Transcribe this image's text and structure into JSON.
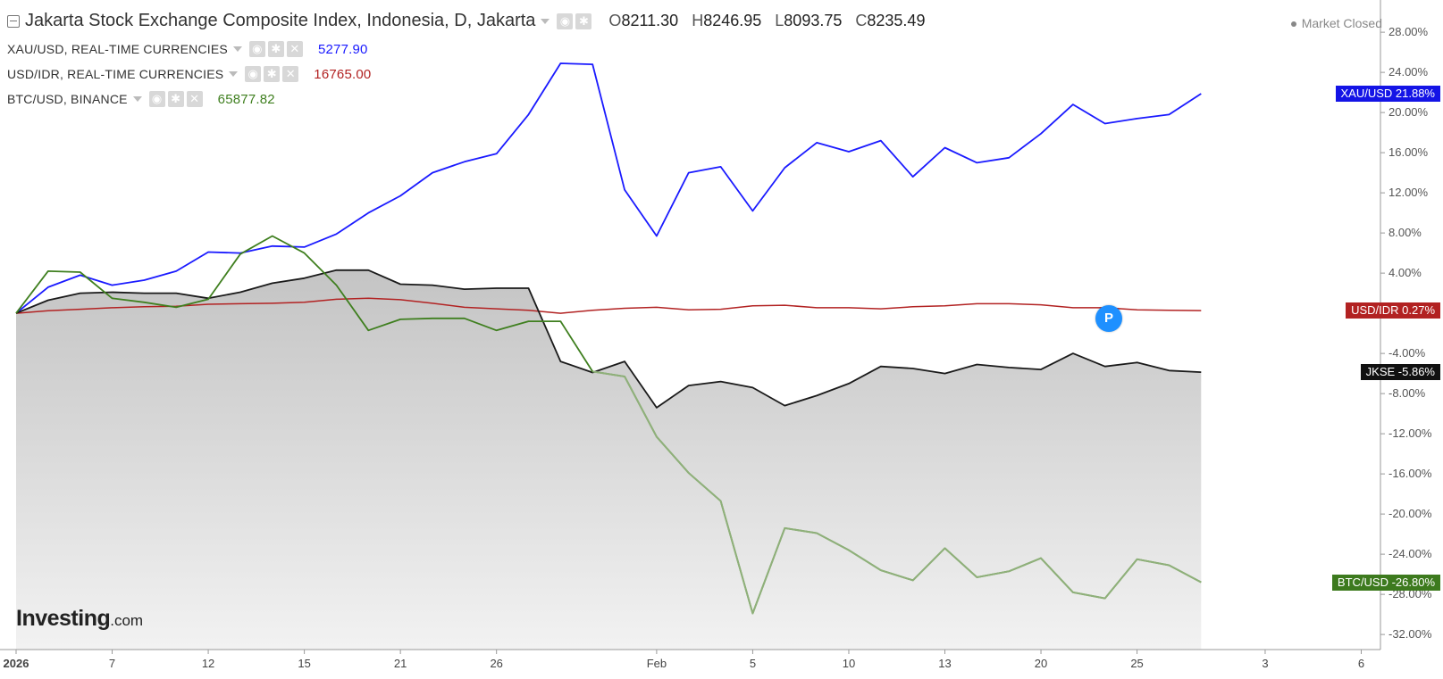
{
  "header": {
    "title": "Jakarta Stock Exchange Composite Index, Indonesia, D, Jakarta",
    "ohlc": [
      {
        "key": "O",
        "value": "8211.30"
      },
      {
        "key": "H",
        "value": "8246.95"
      },
      {
        "key": "L",
        "value": "8093.75"
      },
      {
        "key": "C",
        "value": "8235.49"
      }
    ],
    "market_status": "Market Closed"
  },
  "legend_rows": [
    {
      "label": "XAU/USD, REAL-TIME CURRENCIES",
      "value": "5277.90",
      "color": "#1a1aff"
    },
    {
      "label": "USD/IDR, REAL-TIME CURRENCIES",
      "value": "16765.00",
      "color": "#b22222"
    },
    {
      "label": "BTC/USD, BINANCE",
      "value": "65877.82",
      "color": "#3f7f1f"
    }
  ],
  "logo": {
    "main": "Investing",
    "suffix": ".com"
  },
  "marker_label": "P",
  "chart_data": {
    "type": "line",
    "x_tick_labels": [
      {
        "label": "2026",
        "bold": true,
        "index": 0
      },
      {
        "label": "7",
        "index": 3
      },
      {
        "label": "12",
        "index": 6
      },
      {
        "label": "15",
        "index": 9
      },
      {
        "label": "21",
        "index": 12
      },
      {
        "label": "26",
        "index": 15
      },
      {
        "label": "Feb",
        "index": 20
      },
      {
        "label": "5",
        "index": 23
      },
      {
        "label": "10",
        "index": 26
      },
      {
        "label": "13",
        "index": 29
      },
      {
        "label": "20",
        "index": 32
      },
      {
        "label": "25",
        "index": 35
      },
      {
        "label": "3",
        "index": 39
      },
      {
        "label": "6",
        "index": 42
      }
    ],
    "x_range": [
      0,
      42.6
    ],
    "y_ticks": [
      "28.00%",
      "24.00%",
      "20.00%",
      "16.00%",
      "12.00%",
      "8.00%",
      "4.00%",
      "-4.00%",
      "-8.00%",
      "-12.00%",
      "-16.00%",
      "-20.00%",
      "-24.00%",
      "-28.00%",
      "-32.00%"
    ],
    "y_tick_values": [
      28,
      24,
      20,
      16,
      12,
      8,
      4,
      -4,
      -8,
      -12,
      -16,
      -20,
      -24,
      -28,
      -32
    ],
    "ylim": [
      -33.5,
      30.5
    ],
    "series": [
      {
        "name": "XAU/USD",
        "color": "#1a1aff",
        "label_bg": "#1414e6",
        "end_label": "21.88%",
        "values": [
          0,
          2.6,
          3.8,
          2.8,
          3.3,
          4.2,
          6.1,
          6.0,
          6.7,
          6.6,
          7.9,
          10.0,
          11.7,
          14.0,
          15.1,
          15.9,
          19.8,
          24.9,
          24.8,
          12.3,
          7.7,
          14.0,
          14.6,
          10.2,
          14.5,
          17.0,
          16.1,
          17.2,
          13.6,
          16.5,
          15.0,
          15.5,
          17.9,
          20.8,
          18.9,
          19.4,
          19.8,
          21.88
        ]
      },
      {
        "name": "USD/IDR",
        "color": "#b22222",
        "label_bg": "#b22222",
        "end_label": "0.27%",
        "values": [
          0,
          0.25,
          0.4,
          0.55,
          0.65,
          0.7,
          0.9,
          0.95,
          1.0,
          1.1,
          1.4,
          1.5,
          1.35,
          1.0,
          0.6,
          0.45,
          0.3,
          0.0,
          0.3,
          0.5,
          0.6,
          0.35,
          0.4,
          0.75,
          0.8,
          0.55,
          0.55,
          0.45,
          0.65,
          0.75,
          0.95,
          0.95,
          0.85,
          0.55,
          0.55,
          0.35,
          0.3,
          0.27
        ]
      },
      {
        "name": "JKSE",
        "color": "#1a1a1a",
        "label_bg": "#111111",
        "end_label": "-5.86%",
        "area": true,
        "values": [
          0,
          1.3,
          2.0,
          2.1,
          2.0,
          2.0,
          1.5,
          2.1,
          3.0,
          3.5,
          4.3,
          4.3,
          2.9,
          2.8,
          2.4,
          2.5,
          2.5,
          -4.8,
          -5.9,
          -4.8,
          -9.4,
          -7.2,
          -6.8,
          -7.4,
          -9.2,
          -8.2,
          -7.0,
          -5.3,
          -5.5,
          -6.0,
          -5.1,
          -5.4,
          -5.6,
          -4.0,
          -5.3,
          -4.9,
          -5.7,
          -5.86
        ]
      },
      {
        "name": "BTC/USD",
        "color": "#3f7f1f",
        "label_bg": "#3d7a1e",
        "end_label": "-26.80%",
        "values": [
          0,
          4.2,
          4.1,
          1.5,
          1.1,
          0.6,
          1.4,
          5.9,
          7.7,
          6.0,
          2.8,
          -1.7,
          -0.6,
          -0.5,
          -0.5,
          -1.7,
          -0.8,
          -0.8,
          -5.8,
          -6.3,
          -12.3,
          -15.9,
          -18.7,
          -29.9,
          -21.4,
          -21.9,
          -23.6,
          -25.6,
          -26.6,
          -23.4,
          -26.3,
          -25.7,
          -24.4,
          -27.8,
          -28.4,
          -24.5,
          -25.1,
          -26.8
        ]
      }
    ]
  }
}
